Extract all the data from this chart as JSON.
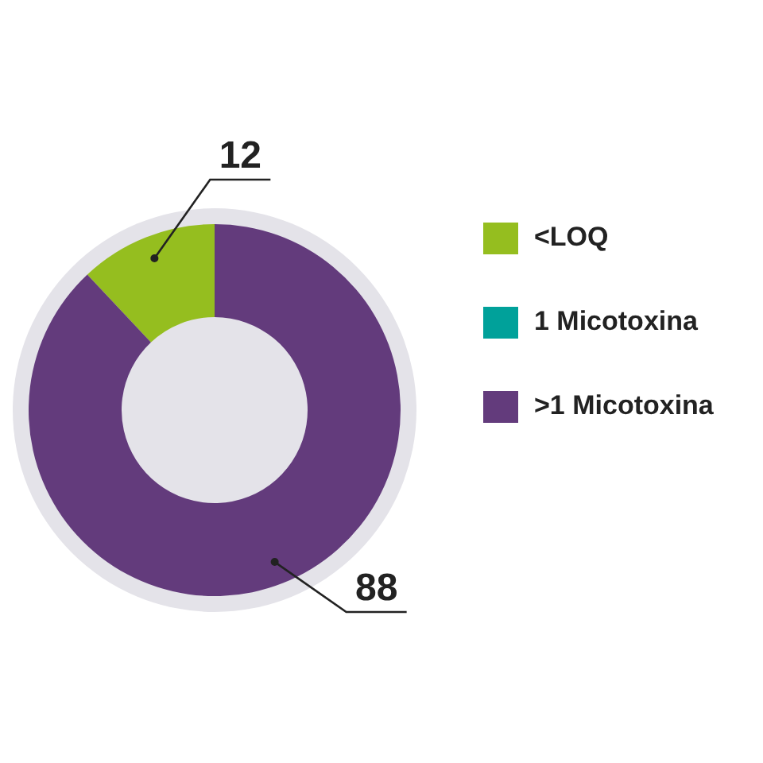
{
  "chart_data": {
    "type": "donut",
    "categories": [
      "<LOQ",
      "1 Micotoxina",
      ">1 Micotoxina"
    ],
    "values": [
      12,
      0,
      88
    ],
    "colors": [
      "#95be1f",
      "#00a19a",
      "#633b7c"
    ],
    "data_labels": true,
    "legend": "right"
  }
}
